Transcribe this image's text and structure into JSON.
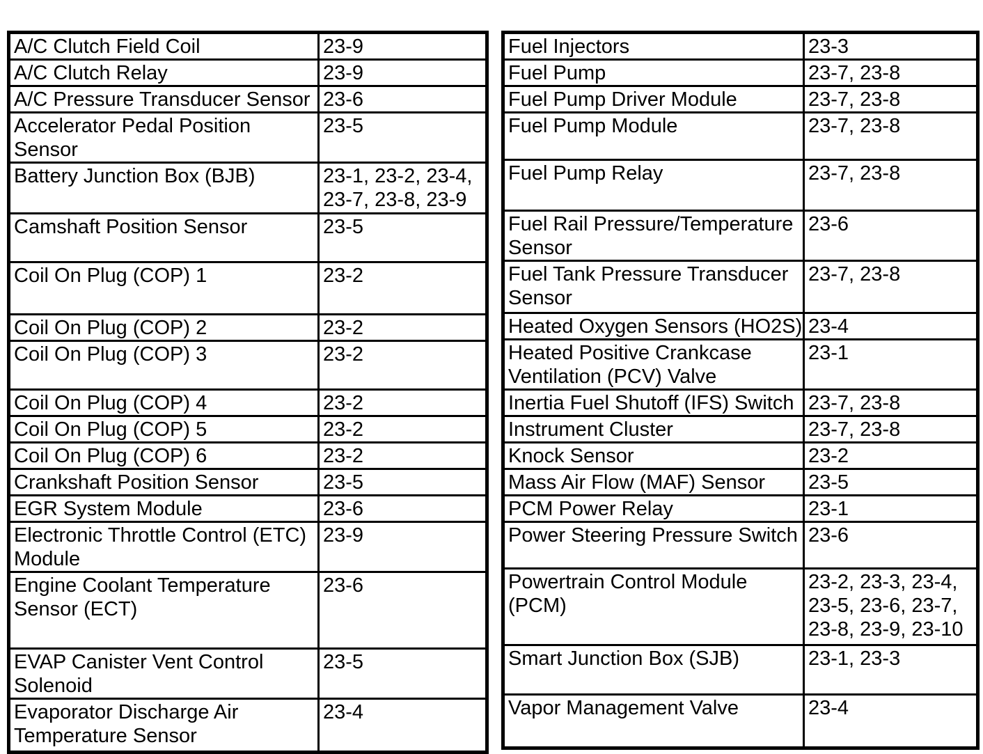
{
  "document": {
    "kind": "component-index-table-page",
    "background_color": "#ffffff",
    "text_color": "#000000",
    "border_color": "#000000"
  },
  "tables": [
    {
      "name": "left",
      "rows": [
        {
          "component": "A/C Clutch Field Coil",
          "pages": "23-9"
        },
        {
          "component": "A/C Clutch Relay",
          "pages": "23-9"
        },
        {
          "component": "A/C Pressure Transducer Sensor",
          "pages": "23-6"
        },
        {
          "component": "Accelerator Pedal Position Sensor",
          "pages": "23-5"
        },
        {
          "component": "Battery Junction Box (BJB)",
          "pages": "23-1, 23-2, 23-4, 23-7, 23-8, 23-9"
        },
        {
          "component": "Camshaft Position Sensor",
          "pages": "23-5"
        },
        {
          "component": "Coil On Plug (COP) 1",
          "pages": "23-2"
        },
        {
          "component": "Coil On Plug (COP) 2",
          "pages": "23-2"
        },
        {
          "component": "Coil On Plug (COP) 3",
          "pages": "23-2"
        },
        {
          "component": "Coil On Plug (COP) 4",
          "pages": "23-2"
        },
        {
          "component": "Coil On Plug (COP) 5",
          "pages": "23-2"
        },
        {
          "component": "Coil On Plug (COP) 6",
          "pages": "23-2"
        },
        {
          "component": "Crankshaft Position Sensor",
          "pages": "23-5"
        },
        {
          "component": "EGR System Module",
          "pages": "23-6"
        },
        {
          "component": "Electronic Throttle Control (ETC) Module",
          "pages": "23-9"
        },
        {
          "component": "Engine Coolant Temperature Sensor (ECT)",
          "pages": "23-6"
        },
        {
          "component": "EVAP Canister Vent Control Solenoid",
          "pages": "23-5"
        },
        {
          "component": "Evaporator Discharge Air Temperature Sensor",
          "pages": "23-4"
        }
      ]
    },
    {
      "name": "right",
      "rows": [
        {
          "component": "Fuel Injectors",
          "pages": "23-3"
        },
        {
          "component": "Fuel Pump",
          "pages": "23-7, 23-8"
        },
        {
          "component": "Fuel Pump Driver Module",
          "pages": "23-7, 23-8"
        },
        {
          "component": "Fuel Pump Module",
          "pages": "23-7, 23-8"
        },
        {
          "component": "Fuel Pump Relay",
          "pages": "23-7, 23-8"
        },
        {
          "component": "Fuel Rail Pressure/Temperature Sensor",
          "pages": "23-6"
        },
        {
          "component": "Fuel Tank Pressure Transducer Sensor",
          "pages": "23-7, 23-8"
        },
        {
          "component": "Heated Oxygen Sensors (HO2S)",
          "pages": "23-4"
        },
        {
          "component": "Heated Positive Crankcase Ventilation (PCV) Valve",
          "pages": "23-1"
        },
        {
          "component": "Inertia Fuel Shutoff (IFS) Switch",
          "pages": "23-7, 23-8"
        },
        {
          "component": "Instrument Cluster",
          "pages": "23-7, 23-8"
        },
        {
          "component": "Knock Sensor",
          "pages": "23-2"
        },
        {
          "component": "Mass Air Flow (MAF) Sensor",
          "pages": "23-5"
        },
        {
          "component": "PCM Power Relay",
          "pages": "23-1"
        },
        {
          "component": "Power Steering Pressure Switch",
          "pages": "23-6"
        },
        {
          "component": "Powertrain Control Module (PCM)",
          "pages": "23-2, 23-3, 23-4, 23-5, 23-6, 23-7, 23-8, 23-9, 23-10"
        },
        {
          "component": "Smart Junction Box (SJB)",
          "pages": "23-1, 23-3"
        },
        {
          "component": "Vapor Management Valve",
          "pages": "23-4"
        }
      ]
    }
  ]
}
